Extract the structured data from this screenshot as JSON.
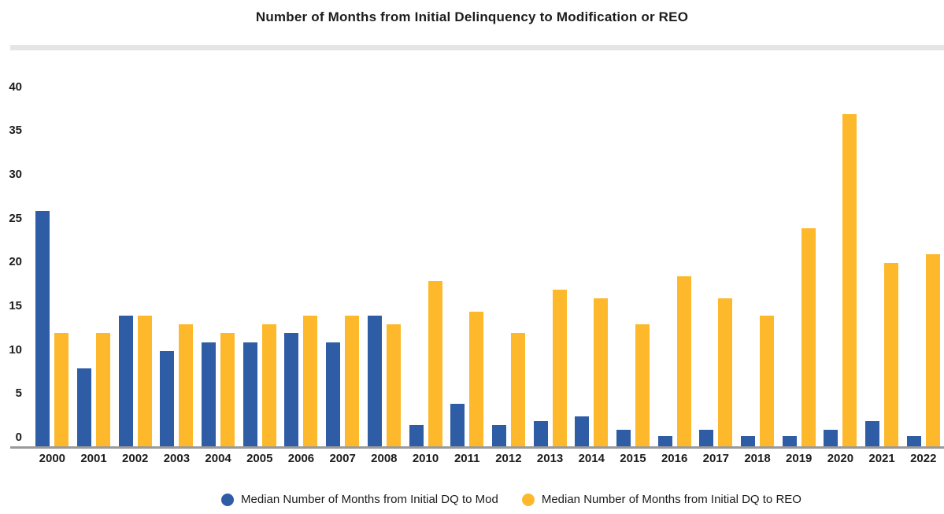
{
  "page": {
    "title": "Number of Months from Initial Delinquency to Modification or REO"
  },
  "chart_data": {
    "type": "bar",
    "title": "Number of Months from Initial Delinquency to Modification or REO",
    "categories": [
      "2000",
      "2001",
      "2002",
      "2003",
      "2004",
      "2005",
      "2006",
      "2007",
      "2008",
      "2010",
      "2011",
      "2012",
      "2013",
      "2014",
      "2015",
      "2016",
      "2017",
      "2018",
      "2019",
      "2020",
      "2021",
      "2022"
    ],
    "series": [
      {
        "name": "Median Number of Months from Initial DQ to Mod",
        "color": "#2E5DA6",
        "values": [
          26,
          8,
          14,
          10,
          11,
          11,
          12,
          11,
          14,
          1.5,
          4,
          1.5,
          2,
          2.5,
          1,
          0.3,
          1,
          0.3,
          0.3,
          1,
          2,
          0.3
        ]
      },
      {
        "name": "Median Number of Months from Initial DQ to REO",
        "color": "#FDB92B",
        "values": [
          12,
          12,
          14,
          13,
          12,
          13,
          14,
          14,
          13,
          18,
          14.5,
          12,
          17,
          16,
          13,
          18.5,
          16,
          14,
          24,
          37,
          20,
          21
        ]
      }
    ],
    "xlabel": "",
    "ylabel": "",
    "ylim": [
      0,
      40
    ],
    "yticks": [
      0,
      5,
      10,
      15,
      20,
      25,
      30,
      35,
      40
    ],
    "grid": false,
    "legend_position": "bottom",
    "axis_line_color": "#9a9a9a",
    "note_missing_category": "2009 not shown"
  }
}
